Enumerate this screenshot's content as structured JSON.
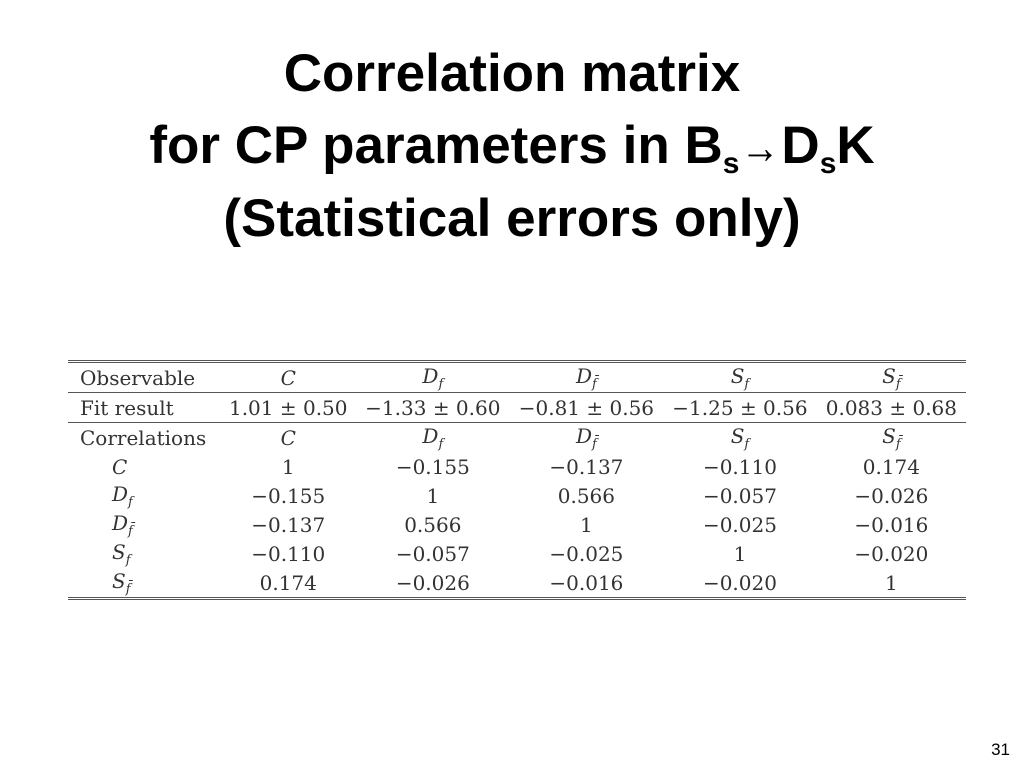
{
  "title": {
    "line1": "Correlation matrix",
    "line2_prefix": "for CP parameters in B",
    "line2_sub1": "s",
    "line2_arrow": "→",
    "line2_mid": "D",
    "line2_sub2": "s",
    "line2_suffix": "K",
    "line3": "(Statistical errors only)"
  },
  "table": {
    "header_label": "Observable",
    "fit_label": "Fit result",
    "corr_label": "Correlations",
    "observables": [
      {
        "base": "C",
        "sub": ""
      },
      {
        "base": "D",
        "sub": "f"
      },
      {
        "base": "D",
        "sub": "f̄"
      },
      {
        "base": "S",
        "sub": "f"
      },
      {
        "base": "S",
        "sub": "f̄"
      }
    ],
    "fit_results": [
      "1.01 ± 0.50",
      "−1.33 ± 0.60",
      "−0.81 ± 0.56",
      "−1.25 ± 0.56",
      "0.083 ± 0.68"
    ],
    "correlations": [
      [
        "1",
        "−0.155",
        "−0.137",
        "−0.110",
        "0.174"
      ],
      [
        "−0.155",
        "1",
        "0.566",
        "−0.057",
        "−0.026"
      ],
      [
        "−0.137",
        "0.566",
        "1",
        "−0.025",
        "−0.016"
      ],
      [
        "−0.110",
        "−0.057",
        "−0.025",
        "1",
        "−0.020"
      ],
      [
        "0.174",
        "−0.026",
        "−0.016",
        "−0.020",
        "1"
      ]
    ]
  },
  "page_number": "31"
}
